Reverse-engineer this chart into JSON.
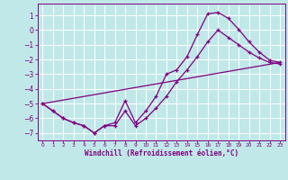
{
  "bg_color": "#c0e8e8",
  "grid_color": "#ffffff",
  "line_color": "#800080",
  "marker": "+",
  "xlabel": "Windchill (Refroidissement éolien,°C)",
  "xlim": [
    -0.5,
    23.5
  ],
  "ylim": [
    -7.5,
    1.8
  ],
  "xticks": [
    0,
    1,
    2,
    3,
    4,
    5,
    6,
    7,
    8,
    9,
    10,
    11,
    12,
    13,
    14,
    15,
    16,
    17,
    18,
    19,
    20,
    21,
    22,
    23
  ],
  "yticks": [
    -7,
    -6,
    -5,
    -4,
    -3,
    -2,
    -1,
    0,
    1
  ],
  "line1_x": [
    0,
    1,
    2,
    3,
    4,
    5,
    6,
    7,
    8,
    9,
    10,
    11,
    12,
    13,
    14,
    15,
    16,
    17,
    18,
    19,
    20,
    21,
    22,
    23
  ],
  "line1_y": [
    -5.0,
    -5.5,
    -6.0,
    -6.3,
    -6.5,
    -7.0,
    -6.5,
    -6.3,
    -4.8,
    -6.3,
    -5.5,
    -4.5,
    -3.0,
    -2.7,
    -1.8,
    -0.3,
    1.1,
    1.2,
    0.8,
    0.05,
    -0.8,
    -1.5,
    -2.05,
    -2.2
  ],
  "line2_x": [
    0,
    1,
    2,
    3,
    4,
    5,
    6,
    7,
    8,
    9,
    10,
    11,
    12,
    13,
    14,
    15,
    16,
    17,
    18,
    19,
    20,
    21,
    22,
    23
  ],
  "line2_y": [
    -5.0,
    -5.5,
    -6.0,
    -6.3,
    -6.5,
    -7.0,
    -6.5,
    -6.5,
    -5.5,
    -6.5,
    -6.0,
    -5.3,
    -4.5,
    -3.5,
    -2.7,
    -1.8,
    -0.8,
    0.0,
    -0.5,
    -1.0,
    -1.5,
    -1.9,
    -2.2,
    -2.3
  ],
  "line3_x": [
    0,
    23
  ],
  "line3_y": [
    -5.0,
    -2.2
  ]
}
